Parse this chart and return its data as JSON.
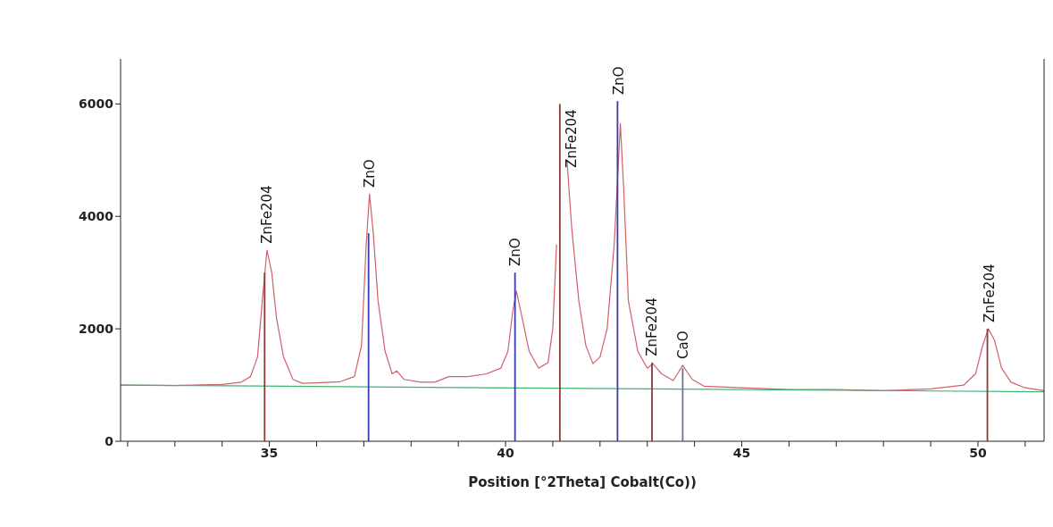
{
  "chart_data": {
    "type": "line",
    "xlabel": "Position [°2Theta] Cobalt(Co))",
    "xlim": [
      31.85,
      51.4
    ],
    "ylim": [
      0,
      6800
    ],
    "xticks": [
      {
        "value": 32,
        "label": null
      },
      {
        "value": 33,
        "label": null
      },
      {
        "value": 34,
        "label": null
      },
      35,
      {
        "value": 36,
        "label": null
      },
      {
        "value": 37,
        "label": null
      },
      {
        "value": 38,
        "label": null
      },
      {
        "value": 39,
        "label": null
      },
      40,
      {
        "value": 41,
        "label": null
      },
      {
        "value": 42,
        "label": null
      },
      {
        "value": 43,
        "label": null
      },
      {
        "value": 44,
        "label": null
      },
      45,
      {
        "value": 46,
        "label": null
      },
      {
        "value": 47,
        "label": null
      },
      {
        "value": 48,
        "label": null
      },
      {
        "value": 49,
        "label": null
      },
      50,
      {
        "value": 51,
        "label": null
      }
    ],
    "yticks": [
      0,
      2000,
      4000,
      6000
    ],
    "marker": "none",
    "line_style": "solid",
    "series": [
      {
        "color": "#d0606a",
        "x": [
          31.85,
          33,
          34,
          34.4,
          34.6,
          34.75,
          34.85,
          34.95,
          35.05,
          35.15,
          35.3,
          35.5,
          35.7,
          36,
          36.5,
          36.8,
          36.95,
          37.05,
          37.12,
          37.2,
          37.3,
          37.45,
          37.6,
          37.7,
          37.85,
          38.2,
          38.5,
          38.8,
          39.2,
          39.6,
          39.9,
          40.05,
          40.15,
          40.23,
          40.35,
          40.5,
          40.7,
          40.9,
          41.0,
          41.08,
          41.12,
          41.25,
          41.3,
          41.4,
          41.55,
          41.7,
          41.85,
          42.0,
          42.15,
          42.3,
          42.43,
          42.5,
          42.6,
          42.8,
          43.0,
          43.12,
          43.3,
          43.55,
          43.75,
          43.95,
          44.2,
          45,
          46,
          47,
          48,
          49,
          49.7,
          49.95,
          50.1,
          50.22,
          50.35,
          50.5,
          50.7,
          51,
          51.4
        ],
        "values": [
          1000,
          990,
          1010,
          1050,
          1150,
          1500,
          2500,
          3400,
          3000,
          2200,
          1500,
          1100,
          1030,
          1040,
          1060,
          1150,
          1700,
          3500,
          4400,
          3700,
          2500,
          1600,
          1200,
          1250,
          1100,
          1050,
          1050,
          1150,
          1150,
          1200,
          1300,
          1600,
          2300,
          2670,
          2200,
          1600,
          1300,
          1400,
          2000,
          3500,
          null,
          null,
          5000,
          3800,
          2500,
          1700,
          1380,
          1500,
          2000,
          3500,
          5650,
          4500,
          2500,
          1600,
          1300,
          1380,
          1200,
          1080,
          1350,
          1100,
          980,
          950,
          920,
          920,
          900,
          930,
          1000,
          1200,
          1700,
          2000,
          1800,
          1300,
          1050,
          950,
          900
        ]
      },
      {
        "type": "line",
        "color": "#3cb371",
        "x": [
          31.85,
          51.4
        ],
        "values": [
          1000,
          880
        ]
      },
      {
        "type": "bar",
        "x": [
          34.9,
          37.1,
          40.2,
          41.15,
          42.37,
          43.1,
          43.75,
          50.2
        ],
        "values": [
          3000,
          3700,
          3000,
          6000,
          6050,
          1400,
          1300,
          2000
        ],
        "colors": [
          "#8b3a3a",
          "#3b3bb0",
          "#3b3bb0",
          "#8b3a3a",
          "#3b3bb0",
          "#8b3a3a",
          "#707090",
          "#8b3a3a"
        ]
      }
    ],
    "annotations": [
      {
        "text": "ZnFe204",
        "x": 34.95,
        "y": 3450
      },
      {
        "text": "ZnO",
        "x": 37.12,
        "y": 4450
      },
      {
        "text": "ZnO",
        "x": 40.2,
        "y": 3050
      },
      {
        "text": "ZnFe204",
        "x": 41.4,
        "y": 4800
      },
      {
        "text": "ZnO",
        "x": 42.4,
        "y": 6100
      },
      {
        "text": "ZnFe204",
        "x": 43.1,
        "y": 1450
      },
      {
        "text": "CaO",
        "x": 43.75,
        "y": 1400
      },
      {
        "text": "ZnFe204",
        "x": 50.25,
        "y": 2050
      }
    ]
  }
}
